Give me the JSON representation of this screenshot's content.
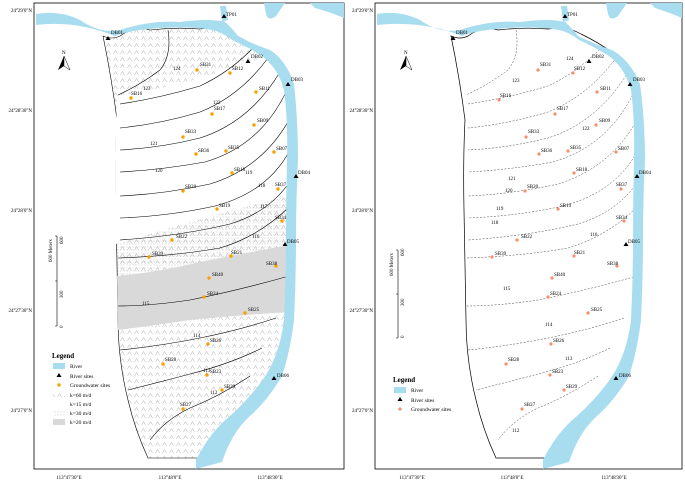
{
  "colors": {
    "river": "#a8dcef",
    "site": "#f4a300",
    "site2": "#f2906a",
    "contour": "#000000",
    "shadeK20": "#d9d9d9"
  },
  "left_panel": {
    "lat_labels": [
      "24°29'0\"N",
      "24°28'30\"N",
      "24°28'0\"N",
      "24°27'30\"N",
      "24°27'0\"N"
    ],
    "lon_labels": [
      "113°47'30\"E",
      "113°48'0\"E",
      "113°48'30\"E"
    ],
    "north": "N",
    "scale": {
      "title": "600 Meters",
      "ticks": [
        "0",
        "300",
        "600"
      ]
    },
    "legend": {
      "title": "Legend",
      "items": [
        "River",
        "River sites",
        "Groundwater sites",
        "k=60 m/d",
        "k=15 m/d",
        "k=30 m/d",
        "k=20 m/d"
      ]
    },
    "contour_labels": [
      "124",
      "123",
      "122",
      "121",
      "120",
      "119",
      "118",
      "117",
      "116",
      "115",
      "114",
      "113",
      "112"
    ],
    "river_sites": [
      "TP01",
      "DB01",
      "DB02",
      "DB03",
      "DB04",
      "DB05",
      "DB06"
    ],
    "groundwater_sites": [
      "SB31",
      "SB12",
      "SB16",
      "SB11",
      "SB17",
      "SB33",
      "SB09",
      "SB36",
      "SB35",
      "SB07",
      "SB18",
      "SB20",
      "SB37",
      "SB19",
      "SB34",
      "SB22",
      "SB21",
      "SB39",
      "SB38",
      "SB40",
      "SB24",
      "SB25",
      "SB26",
      "SB28",
      "SB23",
      "SB29",
      "SB27"
    ]
  },
  "right_panel": {
    "lat_labels": [
      "24°29'0\"N",
      "24°28'30\"N",
      "24°28'0\"N",
      "24°27'30\"N",
      "24°27'0\"N"
    ],
    "lon_labels": [
      "113°47'30\"E",
      "113°48'0\"E",
      "113°48'30\"E"
    ],
    "north": "N",
    "scale": {
      "title": "600 Meters",
      "ticks": [
        "0",
        "300",
        "600"
      ]
    },
    "legend": {
      "title": "Legend",
      "items": [
        "River",
        "River sites",
        "Groundwater sites"
      ]
    },
    "contour_labels": [
      "124",
      "123",
      "122",
      "121",
      "120",
      "119",
      "118",
      "116",
      "115",
      "114",
      "113",
      "112"
    ]
  }
}
